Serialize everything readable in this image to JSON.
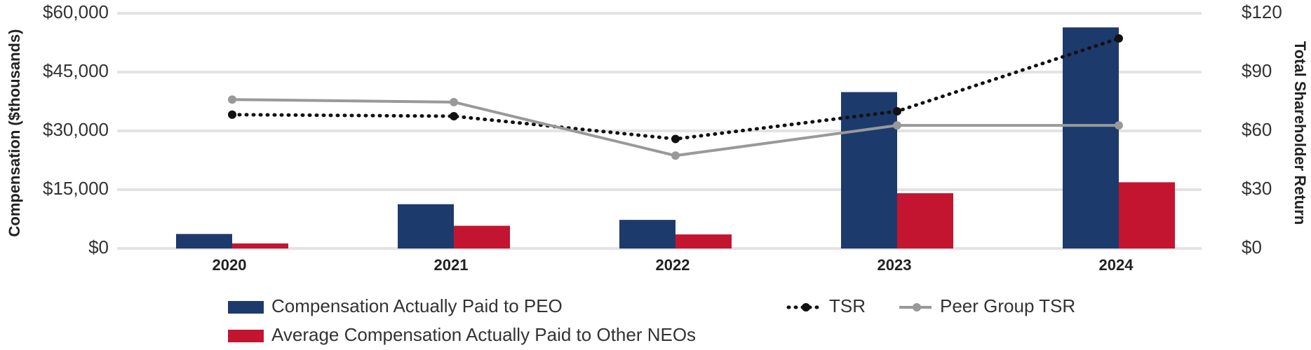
{
  "chart_data": {
    "type": "bar",
    "categories": [
      "2020",
      "2021",
      "2022",
      "2023",
      "2024"
    ],
    "ylabel": "Compensation ($thousands)",
    "y2label": "Total Shareholder Return",
    "ylim": [
      0,
      60000
    ],
    "yticks": [
      {
        "value": 0,
        "label": "$0"
      },
      {
        "value": 15000,
        "label": "$15,000"
      },
      {
        "value": 30000,
        "label": "$30,000"
      },
      {
        "value": 45000,
        "label": "$45,000"
      },
      {
        "value": 60000,
        "label": "$60,000"
      }
    ],
    "y2lim": [
      0,
      120
    ],
    "y2ticks": [
      {
        "value": 0,
        "label": "$0"
      },
      {
        "value": 30,
        "label": "$30"
      },
      {
        "value": 60,
        "label": "$60"
      },
      {
        "value": 90,
        "label": "$90"
      },
      {
        "value": 120,
        "label": "$120"
      }
    ],
    "grid": true,
    "legend": "bottom",
    "series": [
      {
        "name": "Compensation Actually Paid to PEO",
        "type": "bar",
        "color": "#1d3a6c",
        "values": [
          3700,
          11300,
          7300,
          39900,
          56400
        ]
      },
      {
        "name": "Average Compensation Actually Paid to Other NEOs",
        "type": "bar",
        "color": "#c41530",
        "values": [
          1300,
          5800,
          3600,
          14100,
          16900
        ]
      },
      {
        "name": "TSR",
        "type": "line",
        "axis": "y2",
        "style": "dotted",
        "color": "#111111",
        "values": [
          68.3,
          67.5,
          55.9,
          70,
          107.2
        ]
      },
      {
        "name": "Peer Group TSR",
        "type": "line",
        "axis": "y2",
        "style": "solid",
        "color": "#999999",
        "values": [
          76,
          74.7,
          47.4,
          62.8,
          62.8
        ]
      }
    ]
  }
}
